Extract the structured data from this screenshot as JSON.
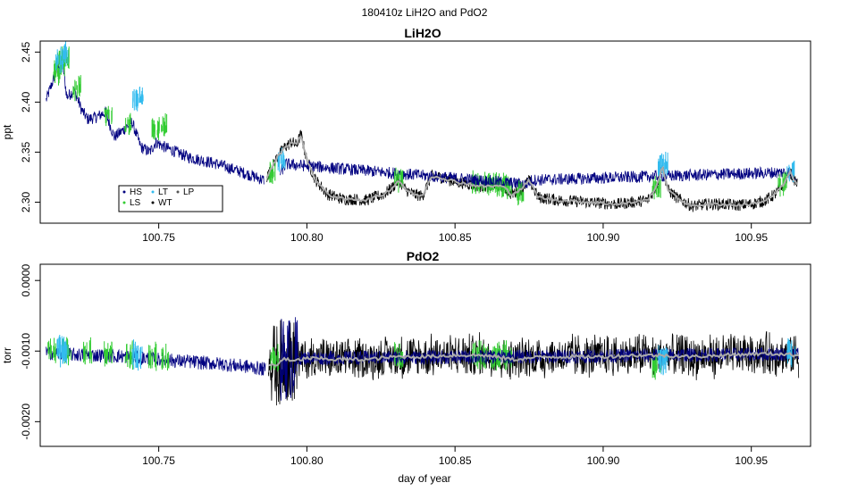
{
  "figure": {
    "suptitle": "180410z   LiH2O and PdO2",
    "xlabel": "day of year"
  },
  "chart_data": [
    {
      "type": "line",
      "title": "LiH2O",
      "xlabel": "",
      "ylabel": "ppt",
      "xlim": [
        100.71,
        100.97
      ],
      "ylim": [
        2.279,
        2.461
      ],
      "xticks": [
        100.75,
        100.8,
        100.85,
        100.9,
        100.95
      ],
      "xtick_labels": [
        "100.75",
        "100.80",
        "100.85",
        "100.90",
        "100.95"
      ],
      "yticks": [
        2.3,
        2.35,
        2.4,
        2.45
      ],
      "ytick_labels": [
        "2.30",
        "2.35",
        "2.40",
        "2.45"
      ],
      "grid": false,
      "legend": {
        "placement": "bottom-left",
        "entries": [
          {
            "label": "HS",
            "color": "#000080"
          },
          {
            "label": "LS",
            "color": "#33cc33"
          },
          {
            "label": "LT",
            "color": "#33bbee"
          },
          {
            "label": "WT",
            "color": "#000000"
          },
          {
            "label": "LP",
            "color": "#555555"
          }
        ]
      },
      "mean_line_color": "#aaaaaa",
      "noise_amplitude": 0.006,
      "segments": [
        {
          "series": "HS",
          "color": "#000080",
          "x": [
            100.712,
            100.716,
            100.7175,
            100.719,
            100.7215,
            100.724,
            100.726,
            100.729,
            100.732,
            100.735,
            100.738,
            100.741,
            100.744,
            100.747,
            100.749,
            100.752,
            100.76,
            100.77,
            100.78,
            100.7855
          ],
          "y": [
            2.402,
            2.436,
            2.44,
            2.405,
            2.412,
            2.392,
            2.383,
            2.385,
            2.39,
            2.365,
            2.372,
            2.38,
            2.355,
            2.35,
            2.36,
            2.355,
            2.345,
            2.338,
            2.328,
            2.322
          ]
        },
        {
          "series": "LS",
          "color": "#33cc33",
          "x": [
            100.7155,
            100.717,
            100.7185,
            100.7225,
            100.733,
            100.74,
            100.749,
            100.7515
          ],
          "y": [
            2.43,
            2.44,
            2.445,
            2.415,
            2.388,
            2.378,
            2.372,
            2.376
          ]
        },
        {
          "series": "LT",
          "color": "#33bbee",
          "x": [
            100.7165,
            100.718,
            100.7425,
            100.7435
          ],
          "y": [
            2.44,
            2.448,
            2.402,
            2.405
          ]
        },
        {
          "series": "WT",
          "color": "#000000",
          "x": [
            100.7865,
            100.79,
            100.7925,
            100.795,
            100.7965,
            100.798,
            100.8,
            100.803,
            100.807,
            100.812,
            100.816,
            100.82,
            100.826,
            100.829,
            100.831,
            100.8335,
            100.836,
            100.839,
            100.842,
            100.845,
            100.848,
            100.851,
            100.855,
            100.858,
            100.866,
            100.869,
            100.872,
            100.875,
            100.878,
            100.88,
            100.885,
            100.89,
            100.895,
            100.9,
            100.905,
            100.91,
            100.915,
            100.918,
            100.92,
            100.922,
            100.925,
            100.93,
            100.935,
            100.94,
            100.945,
            100.95,
            100.955,
            100.958,
            100.961,
            100.963,
            100.9655
          ],
          "y": [
            2.325,
            2.345,
            2.355,
            2.36,
            2.357,
            2.368,
            2.342,
            2.322,
            2.308,
            2.303,
            2.303,
            2.302,
            2.308,
            2.315,
            2.322,
            2.312,
            2.308,
            2.306,
            2.326,
            2.325,
            2.322,
            2.32,
            2.318,
            2.316,
            2.316,
            2.308,
            2.312,
            2.322,
            2.305,
            2.304,
            2.302,
            2.301,
            2.3,
            2.299,
            2.298,
            2.3,
            2.302,
            2.316,
            2.335,
            2.312,
            2.304,
            2.296,
            2.298,
            2.298,
            2.297,
            2.298,
            2.302,
            2.308,
            2.318,
            2.33,
            2.318
          ]
        },
        {
          "series": "LS",
          "color": "#33cc33",
          "x": [
            100.857,
            100.86,
            100.863,
            100.866,
            100.868
          ],
          "y": [
            2.319,
            2.318,
            2.317,
            2.317,
            2.315
          ]
        },
        {
          "series": "HS",
          "color": "#000080",
          "x": [
            100.791,
            100.793,
            100.874,
            100.876,
            100.963,
            100.965
          ],
          "y": [
            2.33,
            2.338,
            2.318,
            2.322,
            2.33,
            2.325
          ]
        },
        {
          "series": "LT",
          "color": "#33bbee",
          "x": [
            100.7915,
            100.9195,
            100.9205,
            100.9635
          ],
          "y": [
            2.342,
            2.335,
            2.338,
            2.33
          ]
        },
        {
          "series": "LS",
          "color": "#33cc33",
          "x": [
            100.788,
            100.831,
            100.872,
            100.918,
            100.9605
          ],
          "y": [
            2.33,
            2.323,
            2.31,
            2.315,
            2.318
          ]
        }
      ]
    },
    {
      "type": "line",
      "title": "PdO2",
      "xlabel": "day of year",
      "ylabel": "torr",
      "xlim": [
        100.71,
        100.97
      ],
      "ylim": [
        -0.00235,
        0.00023
      ],
      "xticks": [
        100.75,
        100.8,
        100.85,
        100.9,
        100.95
      ],
      "xtick_labels": [
        "100.75",
        "100.80",
        "100.85",
        "100.90",
        "100.95"
      ],
      "yticks": [
        -0.002,
        -0.001,
        0.0
      ],
      "ytick_labels": [
        "-0.0020",
        "-0.0010",
        "0.0000"
      ],
      "grid": false,
      "mean_line_color": "#aaaaaa",
      "noise_amplitude": 0.0001,
      "segments": [
        {
          "series": "HS",
          "color": "#000080",
          "x": [
            100.712,
            100.72,
            100.73,
            100.74,
            100.75,
            100.76,
            100.77,
            100.78,
            100.786
          ],
          "y": [
            -0.00102,
            -0.00105,
            -0.00106,
            -0.00108,
            -0.00112,
            -0.00115,
            -0.00118,
            -0.00122,
            -0.00126
          ]
        },
        {
          "series": "LS",
          "color": "#33cc33",
          "x": [
            100.714,
            100.719,
            100.726,
            100.733,
            100.74,
            100.748,
            100.752
          ],
          "y": [
            -0.00098,
            -0.001,
            -0.00102,
            -0.00104,
            -0.00106,
            -0.00108,
            -0.0011
          ]
        },
        {
          "series": "LT",
          "color": "#33bbee",
          "x": [
            100.717,
            100.718,
            100.7425,
            100.743
          ],
          "y": [
            -0.00098,
            -0.001,
            -0.00104,
            -0.00106
          ]
        },
        {
          "series": "WT",
          "color": "#000000",
          "x": [
            100.787,
            100.79,
            100.792,
            100.795,
            100.8,
            100.81,
            100.82,
            100.83,
            100.84,
            100.85,
            100.86,
            100.87,
            100.875,
            100.88,
            100.89,
            100.9,
            100.91,
            100.92,
            100.93,
            100.94,
            100.95,
            100.96,
            100.966
          ],
          "y": [
            -0.0012,
            -0.0012,
            -0.0011,
            -0.00115,
            -0.0011,
            -0.00112,
            -0.00112,
            -0.00108,
            -0.00108,
            -0.00106,
            -0.00106,
            -0.00112,
            -0.0011,
            -0.00108,
            -0.00108,
            -0.00108,
            -0.00106,
            -0.00106,
            -0.00108,
            -0.00106,
            -0.00104,
            -0.00104,
            -0.00106
          ]
        },
        {
          "series": "LS",
          "color": "#33cc33",
          "x": [
            100.857,
            100.86,
            100.863,
            100.866,
            100.868,
            100.789,
            100.831,
            100.918
          ],
          "y": [
            -0.00106,
            -0.00106,
            -0.00108,
            -0.00106,
            -0.00106,
            -0.0011,
            -0.00108,
            -0.0012
          ]
        },
        {
          "series": "HS",
          "color": "#000080",
          "x": [
            100.791,
            100.793,
            100.874,
            100.876,
            100.963,
            100.966
          ],
          "y": [
            -0.00112,
            -0.0011,
            -0.00108,
            -0.00108,
            -0.00104,
            -0.00104
          ]
        },
        {
          "series": "LT",
          "color": "#33bbee",
          "x": [
            100.9195,
            100.9205,
            100.9635
          ],
          "y": [
            -0.0011,
            -0.00112,
            -0.00104
          ]
        }
      ]
    }
  ]
}
